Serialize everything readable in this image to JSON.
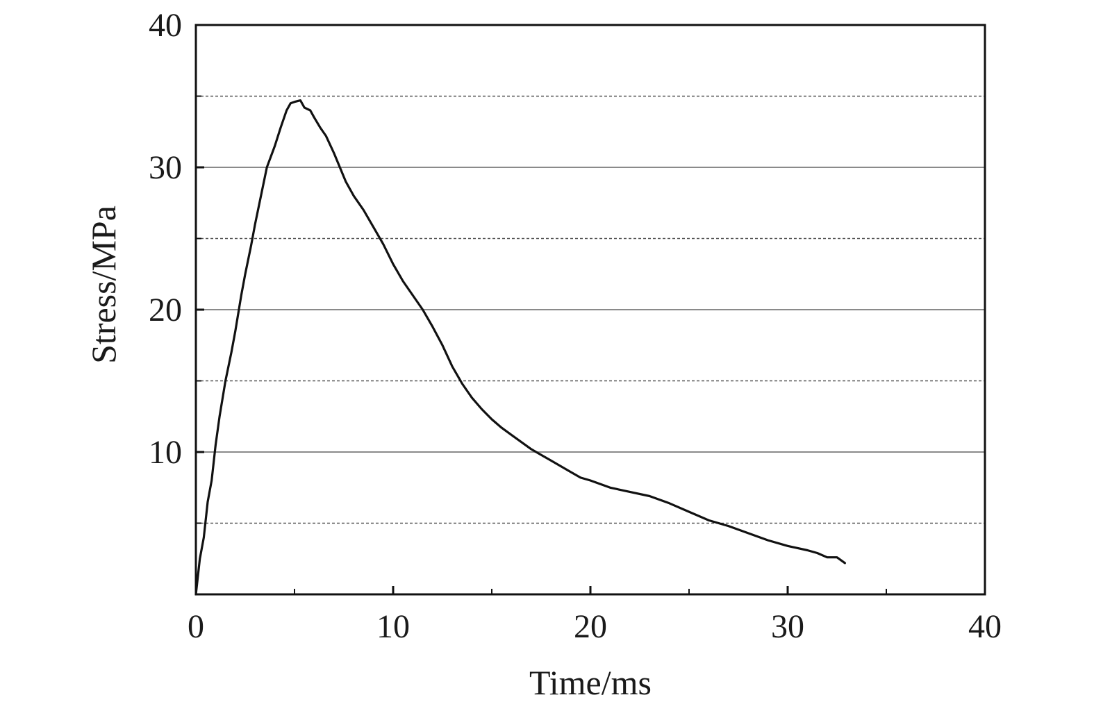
{
  "chart_data": {
    "type": "line",
    "title": "",
    "xlabel": "Time/ms",
    "ylabel": "Stress/MPa",
    "xlim": [
      0,
      40
    ],
    "ylim": [
      0,
      40
    ],
    "x_ticks": [
      0,
      10,
      20,
      30,
      40
    ],
    "y_ticks": [
      10,
      20,
      30,
      40
    ],
    "x_minor_ticks": [
      5,
      15,
      25,
      35
    ],
    "grid": {
      "major_y": [
        10,
        20,
        30
      ],
      "minor_y_dashed": [
        5,
        15,
        25,
        35
      ]
    },
    "legend": "none",
    "series": [
      {
        "color": "#111111",
        "x": [
          0,
          0.2,
          0.4,
          0.6,
          0.8,
          1.0,
          1.2,
          1.5,
          1.8,
          2.0,
          2.3,
          2.5,
          2.8,
          3.0,
          3.3,
          3.6,
          4.0,
          4.3,
          4.6,
          4.8,
          5.0,
          5.3,
          5.5,
          5.8,
          6.0,
          6.3,
          6.6,
          7.0,
          7.3,
          7.6,
          8.0,
          8.5,
          9.0,
          9.5,
          10.0,
          10.5,
          11.0,
          11.5,
          12.0,
          12.5,
          13.0,
          13.5,
          14.0,
          14.5,
          15.0,
          15.5,
          16.0,
          16.5,
          17.0,
          17.5,
          18.0,
          18.5,
          19.0,
          19.5,
          20.0,
          21.0,
          22.0,
          23.0,
          24.0,
          25.0,
          26.0,
          27.0,
          28.0,
          29.0,
          30.0,
          31.0,
          31.5,
          32.0,
          32.5,
          32.9
        ],
        "y": [
          0,
          2.5,
          4.0,
          6.5,
          8.0,
          10.5,
          12.5,
          15.0,
          17.0,
          18.5,
          21.0,
          22.5,
          24.5,
          26.0,
          28.0,
          30.0,
          31.5,
          32.8,
          34.0,
          34.5,
          34.6,
          34.7,
          34.2,
          34.0,
          33.5,
          32.8,
          32.2,
          31.0,
          30.0,
          29.0,
          28.0,
          27.0,
          25.8,
          24.6,
          23.2,
          22.0,
          21.0,
          20.0,
          18.8,
          17.5,
          16.0,
          14.8,
          13.8,
          13.0,
          12.3,
          11.7,
          11.2,
          10.7,
          10.2,
          9.8,
          9.4,
          9.0,
          8.6,
          8.2,
          8.0,
          7.5,
          7.2,
          6.9,
          6.4,
          5.8,
          5.2,
          4.8,
          4.3,
          3.8,
          3.4,
          3.1,
          2.9,
          2.6,
          2.6,
          2.2
        ]
      }
    ]
  }
}
